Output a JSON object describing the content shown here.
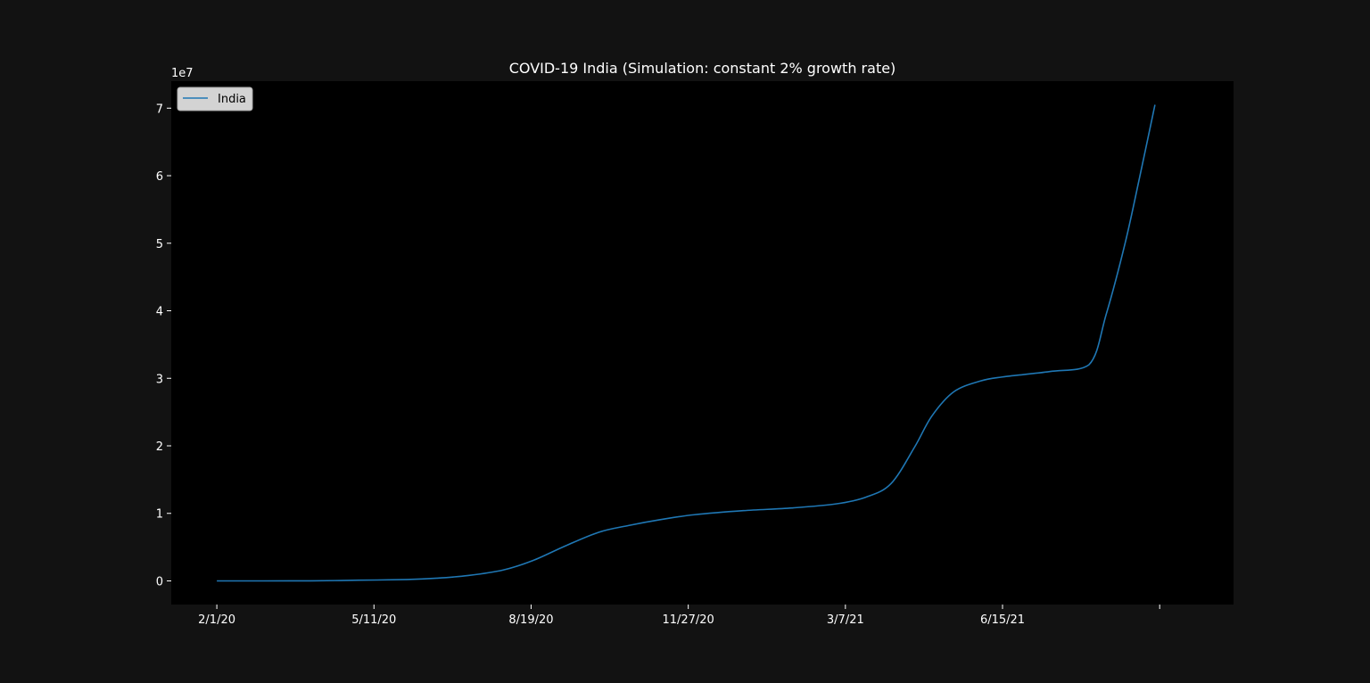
{
  "chart_data": {
    "type": "line",
    "title": "COVID-19 India (Simulation: constant 2% growth rate)",
    "xlabel": "",
    "ylabel": "",
    "y_offset_label": "1e7",
    "x_tick_labels": [
      "2/1/20",
      "5/11/20",
      "8/19/20",
      "11/27/20",
      "3/7/21",
      "6/15/21",
      ""
    ],
    "x_tick_dates": [
      "2020-02-01",
      "2020-05-11",
      "2020-08-19",
      "2020-11-27",
      "2021-03-07",
      "2021-06-15",
      "2021-09-23"
    ],
    "xlim": [
      "2020-01-03",
      "2021-11-09"
    ],
    "y_ticks": [
      0,
      1,
      2,
      3,
      4,
      5,
      6,
      7
    ],
    "ylim": [
      -0.35,
      7.4
    ],
    "grid": false,
    "legend": "upper-left",
    "colors": {
      "figure_bg": "#121212",
      "axes_bg": "#000000",
      "line": "#1f77b4",
      "text": "#ffffff",
      "legend_bg": "#d3d3d3"
    },
    "series": [
      {
        "name": "India",
        "x": [
          "2020-02-01",
          "2020-03-01",
          "2020-04-01",
          "2020-05-01",
          "2020-06-01",
          "2020-06-20",
          "2020-07-10",
          "2020-08-01",
          "2020-08-20",
          "2020-09-10",
          "2020-10-01",
          "2020-10-20",
          "2020-11-10",
          "2020-12-01",
          "2021-01-01",
          "2021-02-01",
          "2021-03-01",
          "2021-03-20",
          "2021-04-05",
          "2021-04-20",
          "2021-05-01",
          "2021-05-15",
          "2021-06-01",
          "2021-06-15",
          "2021-07-15",
          "2021-08-09",
          "2021-08-20",
          "2021-09-01",
          "2021-09-10",
          "2021-09-20"
        ],
        "y": [
          0,
          0,
          0.001,
          0.01,
          0.02,
          0.04,
          0.08,
          0.16,
          0.3,
          0.52,
          0.72,
          0.82,
          0.91,
          0.98,
          1.04,
          1.08,
          1.14,
          1.24,
          1.44,
          1.98,
          2.44,
          2.8,
          2.96,
          3.02,
          3.1,
          3.2,
          3.95,
          5.0,
          5.95,
          7.05
        ]
      }
    ]
  }
}
